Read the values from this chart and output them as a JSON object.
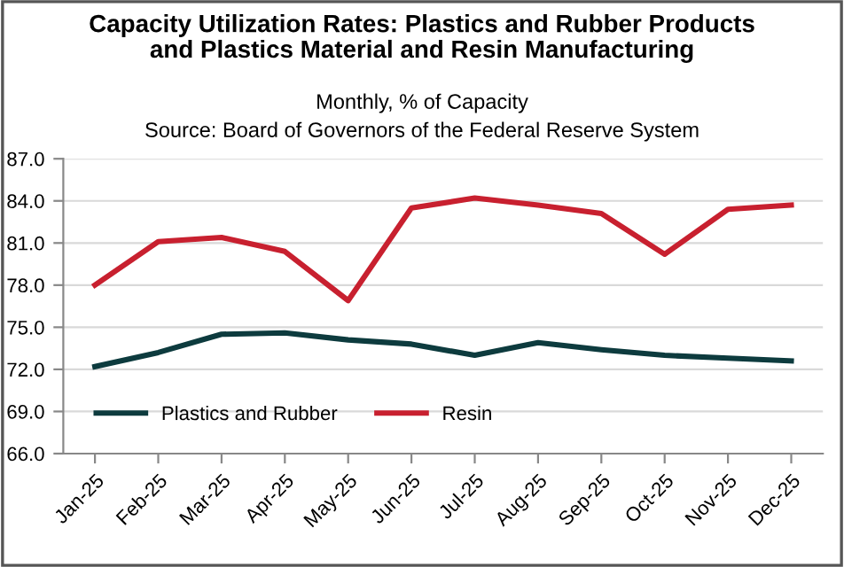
{
  "chart_data": {
    "type": "line",
    "title": "Capacity Utilization Rates: Plastics and Rubber Products\nand Plastics Material and Resin Manufacturing",
    "subtitle": "Monthly, % of Capacity",
    "annotations": [
      "Source: Board of Governors of the Federal Reserve System"
    ],
    "categories": [
      "Jan-25",
      "Feb-25",
      "Mar-25",
      "Apr-25",
      "May-25",
      "Jun-25",
      "Jul-25",
      "Aug-25",
      "Sep-25",
      "Oct-25",
      "Nov-25",
      "Dec-25"
    ],
    "series": [
      {
        "name": "Plastics and Rubber",
        "color": "#0d3b3e",
        "values": [
          72.2,
          73.2,
          74.5,
          74.6,
          74.1,
          73.8,
          73.0,
          73.9,
          73.4,
          73.0,
          72.8,
          72.6
        ]
      },
      {
        "name": "Resin",
        "color": "#c8202f",
        "values": [
          78.0,
          81.1,
          81.4,
          80.4,
          76.9,
          83.5,
          84.2,
          83.7,
          83.1,
          80.2,
          83.4,
          83.7
        ]
      }
    ],
    "ylim": [
      66,
      87
    ],
    "yticks": [
      {
        "value": 66,
        "label": "66.0"
      },
      {
        "value": 69,
        "label": "69.0"
      },
      {
        "value": 72,
        "label": "72.0"
      },
      {
        "value": 75,
        "label": "75.0"
      },
      {
        "value": 78,
        "label": "78.0"
      },
      {
        "value": 81,
        "label": "81.0"
      },
      {
        "value": 84,
        "label": "84.0"
      },
      {
        "value": 87,
        "label": "87.0"
      }
    ],
    "grid": "y",
    "legend": "bottom left",
    "marker": "none",
    "line_style": "solid"
  }
}
